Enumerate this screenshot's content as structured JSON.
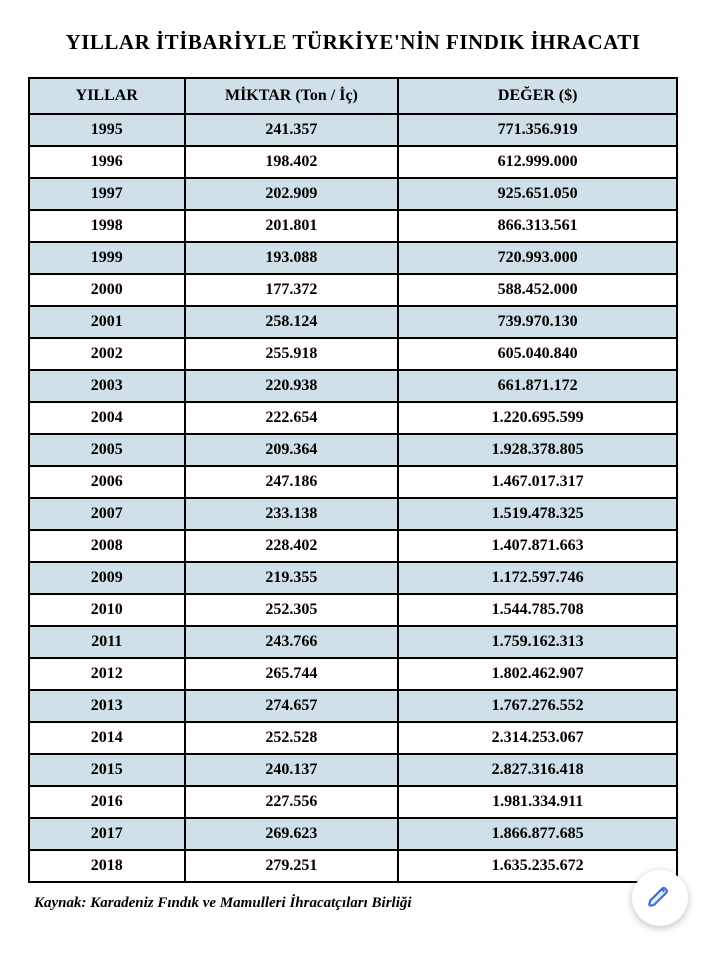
{
  "title": "YILLAR İTİBARİYLE TÜRKİYE'NİN FINDIK İHRACATI",
  "table": {
    "columns": [
      "YILLAR",
      "MİKTAR (Ton / İç)",
      "DEĞER ($)"
    ],
    "header_bg": "#cfe0e8",
    "alt_bg": "#cfe0e8",
    "border_color": "#000000",
    "font_family": "Times New Roman",
    "cell_fontsize": 16,
    "header_fontsize": 16,
    "rows": [
      [
        "1995",
        "241.357",
        "771.356.919"
      ],
      [
        "1996",
        "198.402",
        "612.999.000"
      ],
      [
        "1997",
        "202.909",
        "925.651.050"
      ],
      [
        "1998",
        "201.801",
        "866.313.561"
      ],
      [
        "1999",
        "193.088",
        "720.993.000"
      ],
      [
        "2000",
        "177.372",
        "588.452.000"
      ],
      [
        "2001",
        "258.124",
        "739.970.130"
      ],
      [
        "2002",
        "255.918",
        "605.040.840"
      ],
      [
        "2003",
        "220.938",
        "661.871.172"
      ],
      [
        "2004",
        "222.654",
        "1.220.695.599"
      ],
      [
        "2005",
        "209.364",
        "1.928.378.805"
      ],
      [
        "2006",
        "247.186",
        "1.467.017.317"
      ],
      [
        "2007",
        "233.138",
        "1.519.478.325"
      ],
      [
        "2008",
        "228.402",
        "1.407.871.663"
      ],
      [
        "2009",
        "219.355",
        "1.172.597.746"
      ],
      [
        "2010",
        "252.305",
        "1.544.785.708"
      ],
      [
        "2011",
        "243.766",
        "1.759.162.313"
      ],
      [
        "2012",
        "265.744",
        "1.802.462.907"
      ],
      [
        "2013",
        "274.657",
        "1.767.276.552"
      ],
      [
        "2014",
        "252.528",
        "2.314.253.067"
      ],
      [
        "2015",
        "240.137",
        "2.827.316.418"
      ],
      [
        "2016",
        "227.556",
        "1.981.334.911"
      ],
      [
        "2017",
        "269.623",
        "1.866.877.685"
      ],
      [
        "2018",
        "279.251",
        "1.635.235.672"
      ]
    ]
  },
  "source_label": "Kaynak: Karadeniz Fındık ve Mamulleri İhracatçıları Birliği",
  "pen_color": "#3b6fd8"
}
